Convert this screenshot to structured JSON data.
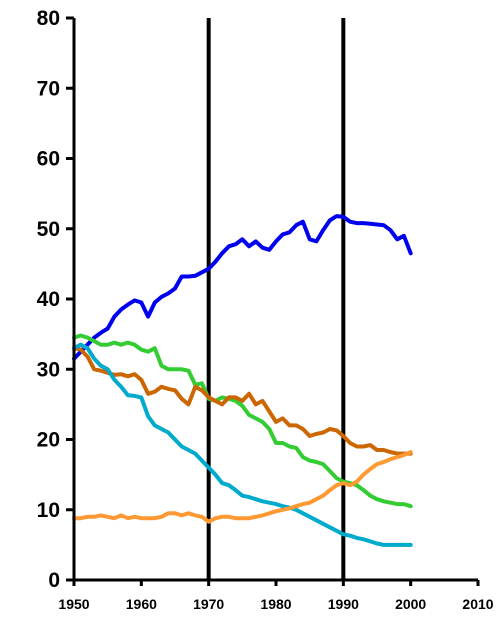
{
  "chart_data": {
    "type": "line",
    "title": "",
    "xlabel": "",
    "ylabel": "",
    "xlim": [
      1950,
      2010
    ],
    "ylim": [
      0,
      80
    ],
    "x_ticks": [
      1950,
      1960,
      1970,
      1980,
      1990,
      2000,
      2010
    ],
    "y_ticks": [
      0,
      10,
      20,
      30,
      40,
      50,
      60,
      70,
      80
    ],
    "grid": false,
    "legend": "none",
    "vertical_markers": [
      1970,
      1990
    ],
    "series": [
      {
        "color": "#0000ee",
        "x": [
          1950,
          1951,
          1952,
          1953,
          1954,
          1955,
          1956,
          1957,
          1958,
          1959,
          1960,
          1961,
          1962,
          1963,
          1964,
          1965,
          1966,
          1967,
          1968,
          1969,
          1970,
          1971,
          1972,
          1973,
          1974,
          1975,
          1976,
          1977,
          1978,
          1979,
          1980,
          1981,
          1982,
          1983,
          1984,
          1985,
          1986,
          1987,
          1988,
          1989,
          1990,
          1991,
          1992,
          1993,
          1994,
          1995,
          1996,
          1997,
          1998,
          1999,
          2000
        ],
        "y": [
          31.5,
          32.5,
          33.5,
          34.5,
          35.2,
          35.8,
          37.5,
          38.5,
          39.2,
          39.8,
          39.5,
          37.5,
          39.5,
          40.3,
          40.8,
          41.5,
          43.2,
          43.2,
          43.3,
          43.8,
          44.3,
          45.3,
          46.5,
          47.5,
          47.8,
          48.5,
          47.5,
          48.2,
          47.3,
          47.0,
          48.2,
          49.2,
          49.5,
          50.5,
          51.0,
          48.5,
          48.2,
          49.8,
          51.2,
          51.8,
          51.7,
          51.0,
          50.8,
          50.8,
          50.7,
          50.6,
          50.5,
          49.8,
          48.5,
          49.0,
          46.5
        ]
      },
      {
        "color": "#33cc33",
        "x": [
          1950,
          1951,
          1952,
          1953,
          1954,
          1955,
          1956,
          1957,
          1958,
          1959,
          1960,
          1961,
          1962,
          1963,
          1964,
          1965,
          1966,
          1967,
          1968,
          1969,
          1970,
          1971,
          1972,
          1973,
          1974,
          1975,
          1976,
          1977,
          1978,
          1979,
          1980,
          1981,
          1982,
          1983,
          1984,
          1985,
          1986,
          1987,
          1988,
          1989,
          1990,
          1991,
          1992,
          1993,
          1994,
          1995,
          1996,
          1997,
          1998,
          1999,
          2000
        ],
        "y": [
          34.5,
          34.8,
          34.5,
          34.0,
          33.5,
          33.5,
          33.8,
          33.5,
          33.8,
          33.5,
          32.8,
          32.5,
          33.0,
          30.5,
          30.0,
          30.0,
          30.0,
          29.8,
          27.8,
          28.0,
          25.8,
          25.5,
          26.0,
          25.8,
          25.5,
          24.8,
          23.5,
          23.0,
          22.5,
          21.5,
          19.5,
          19.5,
          19.0,
          18.8,
          17.5,
          17.0,
          16.8,
          16.5,
          15.5,
          14.5,
          14.0,
          13.8,
          13.5,
          12.8,
          12.0,
          11.5,
          11.2,
          11.0,
          10.8,
          10.8,
          10.5
        ]
      },
      {
        "color": "#cc6600",
        "x": [
          1950,
          1951,
          1952,
          1953,
          1954,
          1955,
          1956,
          1957,
          1958,
          1959,
          1960,
          1961,
          1962,
          1963,
          1964,
          1965,
          1966,
          1967,
          1968,
          1969,
          1970,
          1971,
          1972,
          1973,
          1974,
          1975,
          1976,
          1977,
          1978,
          1979,
          1980,
          1981,
          1982,
          1983,
          1984,
          1985,
          1986,
          1987,
          1988,
          1989,
          1990,
          1991,
          1992,
          1993,
          1994,
          1995,
          1996,
          1997,
          1998,
          1999,
          2000
        ],
        "y": [
          33.0,
          32.8,
          31.8,
          30.0,
          29.8,
          29.5,
          29.2,
          29.3,
          29.0,
          29.3,
          28.5,
          26.5,
          26.8,
          27.5,
          27.2,
          27.0,
          25.8,
          25.0,
          27.5,
          27.0,
          26.0,
          25.5,
          25.0,
          26.0,
          26.0,
          25.5,
          26.5,
          25.0,
          25.5,
          24.0,
          22.5,
          23.0,
          22.0,
          22.0,
          21.5,
          20.5,
          20.8,
          21.0,
          21.5,
          21.3,
          20.5,
          19.5,
          19.0,
          19.0,
          19.2,
          18.5,
          18.5,
          18.2,
          18.0,
          18.0,
          18.0
        ]
      },
      {
        "color": "#00aacc",
        "x": [
          1950,
          1951,
          1952,
          1953,
          1954,
          1955,
          1956,
          1957,
          1958,
          1959,
          1960,
          1961,
          1962,
          1963,
          1964,
          1965,
          1966,
          1967,
          1968,
          1969,
          1970,
          1971,
          1972,
          1973,
          1974,
          1975,
          1976,
          1977,
          1978,
          1979,
          1980,
          1981,
          1982,
          1983,
          1984,
          1985,
          1986,
          1987,
          1988,
          1989,
          1990,
          1991,
          1992,
          1993,
          1994,
          1995,
          1996,
          1997,
          1998,
          1999,
          2000
        ],
        "y": [
          33.0,
          33.5,
          33.0,
          31.5,
          30.5,
          30.0,
          28.5,
          27.5,
          26.3,
          26.2,
          26.0,
          23.3,
          22.0,
          21.5,
          21.0,
          20.0,
          19.0,
          18.5,
          18.0,
          17.0,
          16.0,
          15.0,
          13.8,
          13.5,
          12.8,
          12.0,
          11.8,
          11.5,
          11.2,
          11.0,
          10.8,
          10.5,
          10.3,
          10.0,
          9.5,
          9.0,
          8.5,
          8.0,
          7.5,
          7.0,
          6.5,
          6.3,
          6.0,
          5.8,
          5.5,
          5.2,
          5.0,
          5.0,
          5.0,
          5.0,
          5.0
        ]
      },
      {
        "color": "#ff9933",
        "x": [
          1950,
          1951,
          1952,
          1953,
          1954,
          1955,
          1956,
          1957,
          1958,
          1959,
          1960,
          1961,
          1962,
          1963,
          1964,
          1965,
          1966,
          1967,
          1968,
          1969,
          1970,
          1971,
          1972,
          1973,
          1974,
          1975,
          1976,
          1977,
          1978,
          1979,
          1980,
          1981,
          1982,
          1983,
          1984,
          1985,
          1986,
          1987,
          1988,
          1989,
          1990,
          1991,
          1992,
          1993,
          1994,
          1995,
          1996,
          1997,
          1998,
          1999,
          2000
        ],
        "y": [
          8.8,
          8.8,
          9.0,
          9.0,
          9.2,
          9.0,
          8.8,
          9.2,
          8.8,
          9.0,
          8.8,
          8.8,
          8.8,
          9.0,
          9.5,
          9.5,
          9.2,
          9.5,
          9.2,
          9.0,
          8.3,
          8.8,
          9.0,
          9.0,
          8.8,
          8.8,
          8.8,
          9.0,
          9.2,
          9.5,
          9.8,
          10.0,
          10.2,
          10.5,
          10.8,
          11.0,
          11.5,
          12.0,
          12.8,
          13.5,
          13.8,
          13.5,
          14.0,
          15.0,
          15.8,
          16.5,
          16.8,
          17.2,
          17.5,
          17.8,
          18.2
        ]
      }
    ]
  }
}
